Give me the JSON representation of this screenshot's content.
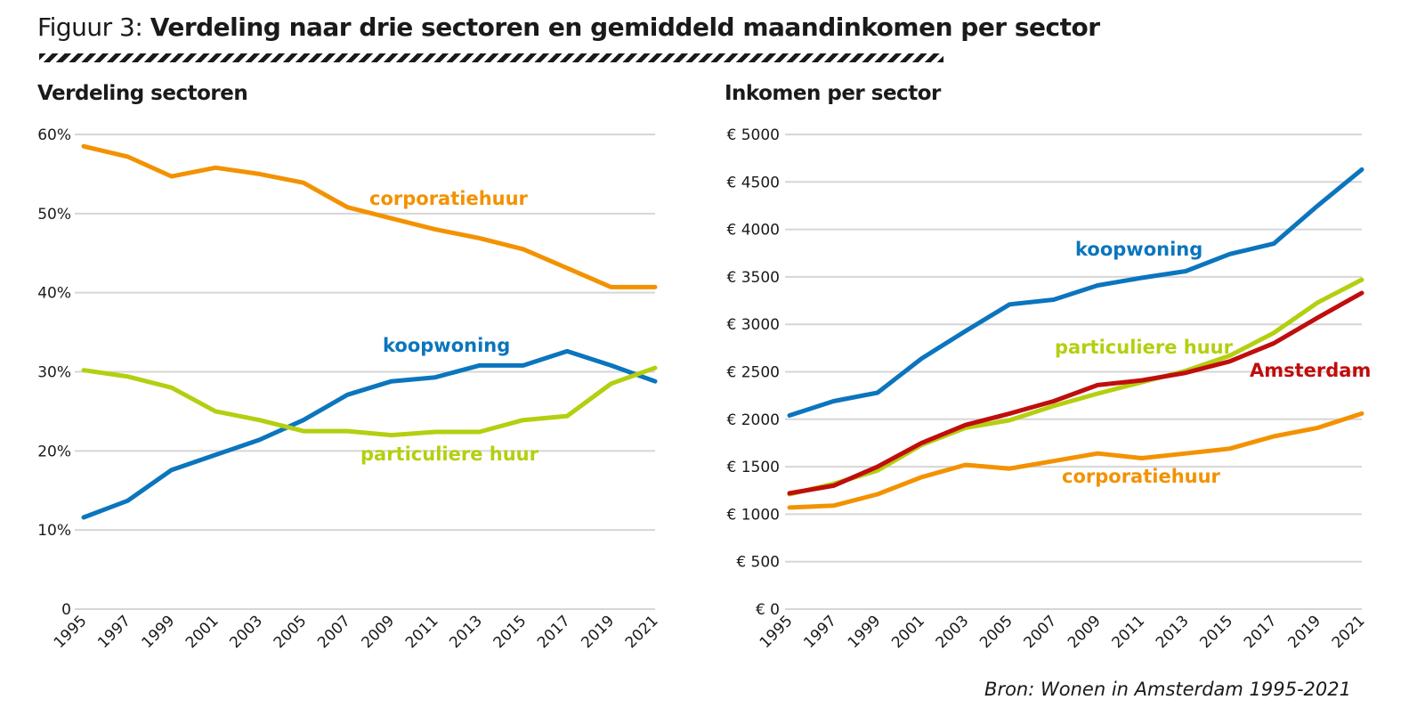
{
  "figure": {
    "prefix": "Figuur 3:",
    "title": "Verdeling naar drie sectoren en gemiddeld maandinkomen per sector",
    "source": "Bron: Wonen in Amsterdam 1995-2021"
  },
  "chart_data": [
    {
      "type": "line",
      "title": "Verdeling sectoren",
      "xlabel": "",
      "ylabel": "",
      "categories": [
        "1995",
        "1997",
        "1999",
        "2001",
        "2003",
        "2005",
        "2007",
        "2009",
        "2011",
        "2013",
        "2015",
        "2017",
        "2019",
        "2021"
      ],
      "ylim": [
        0,
        60
      ],
      "yticks": [
        {
          "value": 0,
          "label": "0"
        },
        {
          "value": 10,
          "label": "10%"
        },
        {
          "value": 20,
          "label": "20%"
        },
        {
          "value": 30,
          "label": "30%"
        },
        {
          "value": 40,
          "label": "40%"
        },
        {
          "value": 50,
          "label": "50%"
        },
        {
          "value": 60,
          "label": "60%"
        }
      ],
      "grid": true,
      "legend": "inline",
      "series": [
        {
          "name": "corporatiehuur",
          "color": "#f39200",
          "values": [
            58.5,
            57.2,
            54.7,
            55.8,
            55.0,
            53.9,
            50.8,
            49.4,
            48.0,
            46.9,
            45.5,
            43.1,
            40.7,
            40.7
          ]
        },
        {
          "name": "koopwoning",
          "color": "#0b75bd",
          "values": [
            11.6,
            13.7,
            17.6,
            19.5,
            21.4,
            23.9,
            27.1,
            28.8,
            29.3,
            30.8,
            30.8,
            32.6,
            30.8,
            28.8
          ]
        },
        {
          "name": "particuliere huur",
          "color": "#b4cf0f",
          "values": [
            30.2,
            29.4,
            28.0,
            25.0,
            23.9,
            22.5,
            22.5,
            22.0,
            22.4,
            22.4,
            23.9,
            24.4,
            28.5,
            30.5
          ]
        }
      ]
    },
    {
      "type": "line",
      "title": "Inkomen per sector",
      "xlabel": "",
      "ylabel": "",
      "categories": [
        "1995",
        "1997",
        "1999",
        "2001",
        "2003",
        "2005",
        "2007",
        "2009",
        "2011",
        "2013",
        "2015",
        "2017",
        "2019",
        "2021"
      ],
      "ylim": [
        0,
        5000
      ],
      "yticks": [
        {
          "value": 0,
          "label": "€ 0"
        },
        {
          "value": 500,
          "label": "€ 500"
        },
        {
          "value": 1000,
          "label": "€ 1000"
        },
        {
          "value": 1500,
          "label": "€ 1500"
        },
        {
          "value": 2000,
          "label": "€ 2000"
        },
        {
          "value": 2500,
          "label": "€ 2500"
        },
        {
          "value": 3000,
          "label": "€ 3000"
        },
        {
          "value": 3500,
          "label": "€ 3500"
        },
        {
          "value": 4000,
          "label": "€ 4000"
        },
        {
          "value": 4500,
          "label": "€ 4500"
        },
        {
          "value": 5000,
          "label": "€ 5000"
        }
      ],
      "grid": true,
      "legend": "inline",
      "series": [
        {
          "name": "koopwoning",
          "color": "#0b75bd",
          "values": [
            2040,
            2190,
            2280,
            2640,
            2930,
            3210,
            3260,
            3410,
            3490,
            3560,
            3740,
            3850,
            4250,
            4630
          ]
        },
        {
          "name": "particuliere huur",
          "color": "#b4cf0f",
          "values": [
            1210,
            1320,
            1460,
            1730,
            1910,
            1990,
            2140,
            2270,
            2390,
            2510,
            2670,
            2910,
            3230,
            3470
          ]
        },
        {
          "name": "Amsterdam",
          "color": "#c00d0d",
          "values": [
            1220,
            1300,
            1500,
            1750,
            1940,
            2060,
            2190,
            2360,
            2410,
            2490,
            2610,
            2800,
            3070,
            3330
          ]
        },
        {
          "name": "corporatiehuur",
          "color": "#f39200",
          "values": [
            1070,
            1090,
            1210,
            1390,
            1520,
            1480,
            1560,
            1640,
            1590,
            1640,
            1690,
            1820,
            1910,
            2060
          ]
        }
      ]
    }
  ]
}
